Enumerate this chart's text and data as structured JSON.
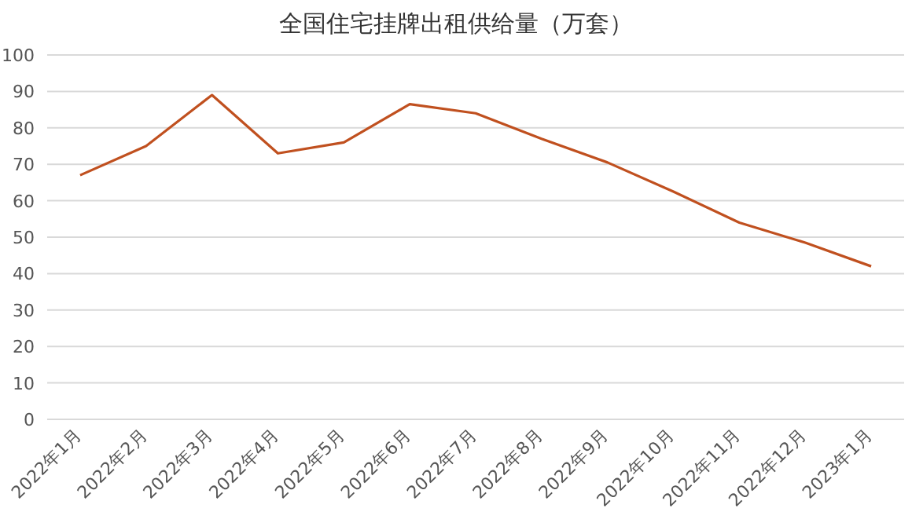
{
  "chart_data": {
    "type": "line",
    "title": "全国住宅挂牌出租供给量（万套）",
    "categories": [
      "2022年1月",
      "2022年2月",
      "2022年3月",
      "2022年4月",
      "2022年5月",
      "2022年6月",
      "2022年7月",
      "2022年8月",
      "2022年9月",
      "2022年10月",
      "2022年11月",
      "2022年12月",
      "2023年1月"
    ],
    "values": [
      67,
      75,
      89,
      73,
      76,
      86.5,
      84,
      77,
      70.5,
      62.5,
      54,
      48.5,
      42
    ],
    "color": "#c0501f",
    "ylim": [
      0,
      100
    ],
    "yticks": [
      0,
      10,
      20,
      30,
      40,
      50,
      60,
      70,
      80,
      90,
      100
    ],
    "grid": "y"
  }
}
